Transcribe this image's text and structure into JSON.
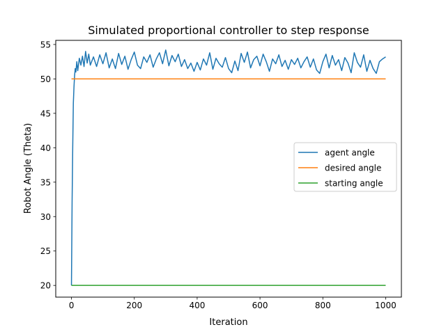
{
  "chart_data": {
    "type": "line",
    "title": "Simulated proportional controller to step response",
    "xlabel": "Iteration",
    "ylabel": "Robot Angle (Theta)",
    "xlim": [
      -50,
      1050
    ],
    "ylim": [
      18.3,
      55.6
    ],
    "xticks": [
      0,
      200,
      400,
      600,
      800,
      1000
    ],
    "yticks": [
      20,
      25,
      30,
      35,
      40,
      45,
      50,
      55
    ],
    "grid": false,
    "legend_position": "center-right",
    "series": [
      {
        "name": "agent angle",
        "color": "#1f77b4",
        "x": [
          0,
          2,
          4,
          6,
          8,
          10,
          12,
          14,
          17,
          20,
          25,
          30,
          35,
          40,
          45,
          50,
          55,
          60,
          70,
          80,
          90,
          100,
          110,
          120,
          130,
          140,
          150,
          160,
          170,
          180,
          190,
          200,
          210,
          220,
          230,
          240,
          250,
          260,
          270,
          280,
          290,
          300,
          310,
          320,
          330,
          340,
          350,
          360,
          370,
          380,
          390,
          400,
          410,
          420,
          430,
          440,
          450,
          460,
          470,
          480,
          490,
          500,
          510,
          520,
          530,
          540,
          550,
          560,
          570,
          580,
          590,
          600,
          610,
          620,
          630,
          640,
          650,
          660,
          670,
          680,
          690,
          700,
          710,
          720,
          730,
          740,
          750,
          760,
          770,
          780,
          790,
          800,
          810,
          820,
          830,
          840,
          850,
          860,
          870,
          880,
          890,
          900,
          910,
          920,
          930,
          940,
          950,
          960,
          970,
          980,
          990,
          1000
        ],
        "y": [
          20,
          32,
          40,
          46.5,
          48.8,
          50.5,
          51.5,
          51.0,
          52.5,
          51.2,
          53.0,
          52.0,
          53.3,
          51.8,
          54.0,
          52.3,
          53.6,
          52.0,
          53.2,
          51.8,
          53.5,
          52.2,
          53.8,
          51.6,
          52.9,
          51.5,
          53.7,
          52.1,
          53.3,
          51.4,
          52.8,
          53.9,
          52.0,
          51.5,
          53.2,
          52.4,
          53.5,
          51.7,
          52.9,
          53.8,
          52.2,
          54.2,
          51.9,
          53.4,
          52.5,
          53.6,
          51.8,
          52.8,
          51.5,
          52.3,
          51.1,
          52.4,
          51.3,
          52.9,
          52.0,
          53.8,
          51.4,
          53.0,
          52.2,
          51.7,
          53.1,
          51.5,
          50.9,
          52.6,
          51.2,
          53.7,
          52.4,
          53.9,
          51.6,
          52.8,
          53.3,
          51.9,
          53.6,
          52.5,
          51.1,
          52.9,
          52.2,
          53.5,
          51.8,
          52.7,
          51.4,
          52.8,
          52.1,
          53.0,
          51.6,
          52.5,
          53.2,
          51.7,
          52.9,
          51.3,
          50.8,
          52.5,
          53.6,
          51.6,
          53.4,
          52.0,
          52.8,
          51.2,
          53.1,
          52.3,
          50.9,
          53.8,
          52.4,
          51.7,
          53.5,
          51.1,
          52.7,
          51.5,
          50.8,
          52.5,
          52.9,
          53.2
        ]
      },
      {
        "name": "desired angle",
        "color": "#ff7f0e",
        "x": [
          0,
          1000
        ],
        "y": [
          50,
          50
        ]
      },
      {
        "name": "starting angle",
        "color": "#2ca02c",
        "x": [
          0,
          1000
        ],
        "y": [
          20,
          20
        ]
      }
    ]
  }
}
